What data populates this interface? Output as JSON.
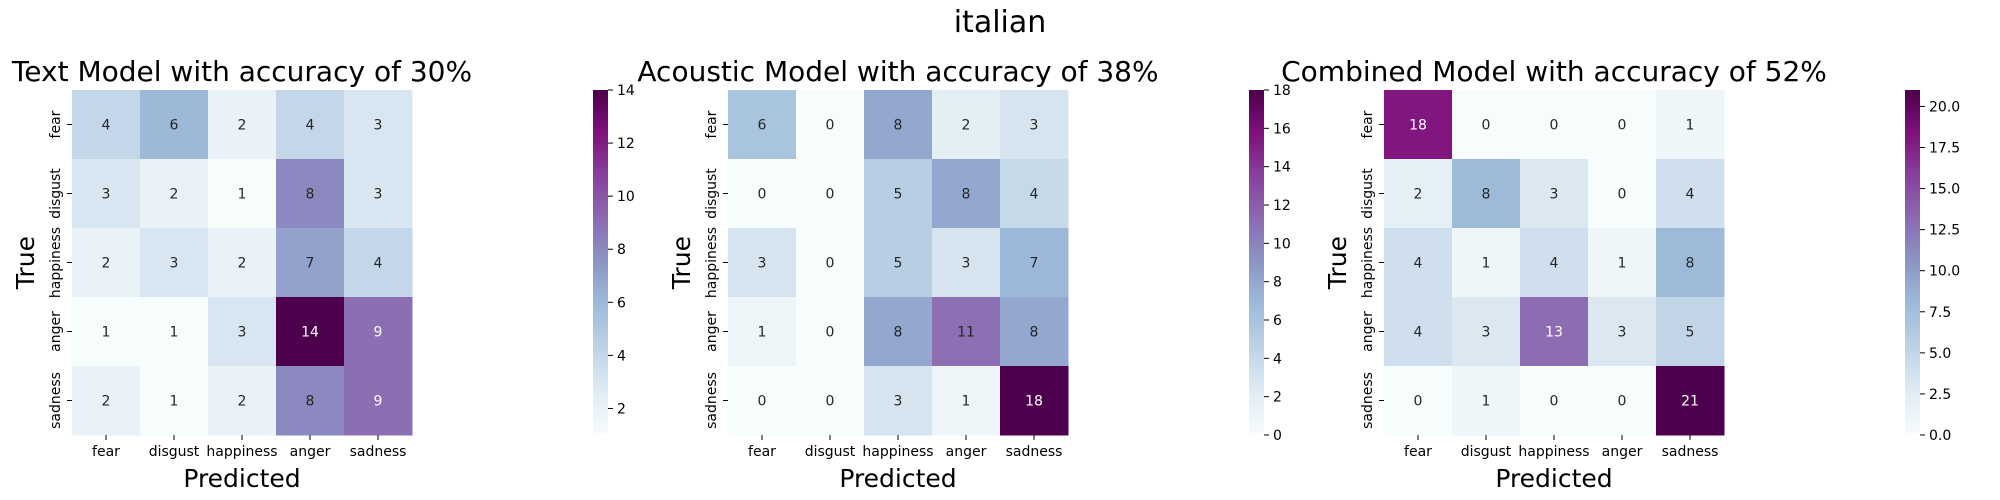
{
  "figure": {
    "suptitle": "italian"
  },
  "chart_data": [
    {
      "type": "heatmap",
      "title": "Text Model with accuracy of 30%",
      "xlabel": "Predicted",
      "ylabel": "True",
      "x_categories": [
        "fear",
        "disgust",
        "happiness",
        "anger",
        "sadness"
      ],
      "y_categories": [
        "fear",
        "disgust",
        "happiness",
        "anger",
        "sadness"
      ],
      "values": [
        [
          4,
          6,
          2,
          4,
          3
        ],
        [
          3,
          2,
          1,
          8,
          3
        ],
        [
          2,
          3,
          2,
          7,
          4
        ],
        [
          1,
          1,
          3,
          14,
          9
        ],
        [
          2,
          1,
          2,
          8,
          9
        ]
      ],
      "colormap": "BuPu",
      "vmin": 1,
      "vmax": 14,
      "colorbar_ticks": [
        "2",
        "4",
        "6",
        "8",
        "10",
        "12",
        "14"
      ]
    },
    {
      "type": "heatmap",
      "title": "Acoustic Model with accuracy of 38%",
      "xlabel": "Predicted",
      "ylabel": "True",
      "x_categories": [
        "fear",
        "disgust",
        "happiness",
        "anger",
        "sadness"
      ],
      "y_categories": [
        "fear",
        "disgust",
        "happiness",
        "anger",
        "sadness"
      ],
      "values": [
        [
          6,
          0,
          8,
          2,
          3
        ],
        [
          0,
          0,
          5,
          8,
          4
        ],
        [
          3,
          0,
          5,
          3,
          7
        ],
        [
          1,
          0,
          8,
          11,
          8
        ],
        [
          0,
          0,
          3,
          1,
          18
        ]
      ],
      "colormap": "BuPu",
      "vmin": 0,
      "vmax": 18,
      "colorbar_ticks": [
        "0",
        "2",
        "4",
        "6",
        "8",
        "10",
        "12",
        "14",
        "16",
        "18"
      ]
    },
    {
      "type": "heatmap",
      "title": "Combined Model with accuracy of 52%",
      "xlabel": "Predicted",
      "ylabel": "True",
      "x_categories": [
        "fear",
        "disgust",
        "happiness",
        "anger",
        "sadness"
      ],
      "y_categories": [
        "fear",
        "disgust",
        "happiness",
        "anger",
        "sadness"
      ],
      "values": [
        [
          18,
          0,
          0,
          0,
          1
        ],
        [
          2,
          8,
          3,
          0,
          4
        ],
        [
          4,
          1,
          4,
          1,
          8
        ],
        [
          4,
          3,
          13,
          3,
          5
        ],
        [
          0,
          1,
          0,
          0,
          21
        ]
      ],
      "colormap": "BuPu",
      "vmin": 0,
      "vmax": 21,
      "colorbar_ticks": [
        "0.0",
        "2.5",
        "5.0",
        "7.5",
        "10.0",
        "12.5",
        "15.0",
        "17.5",
        "20.0"
      ]
    }
  ]
}
